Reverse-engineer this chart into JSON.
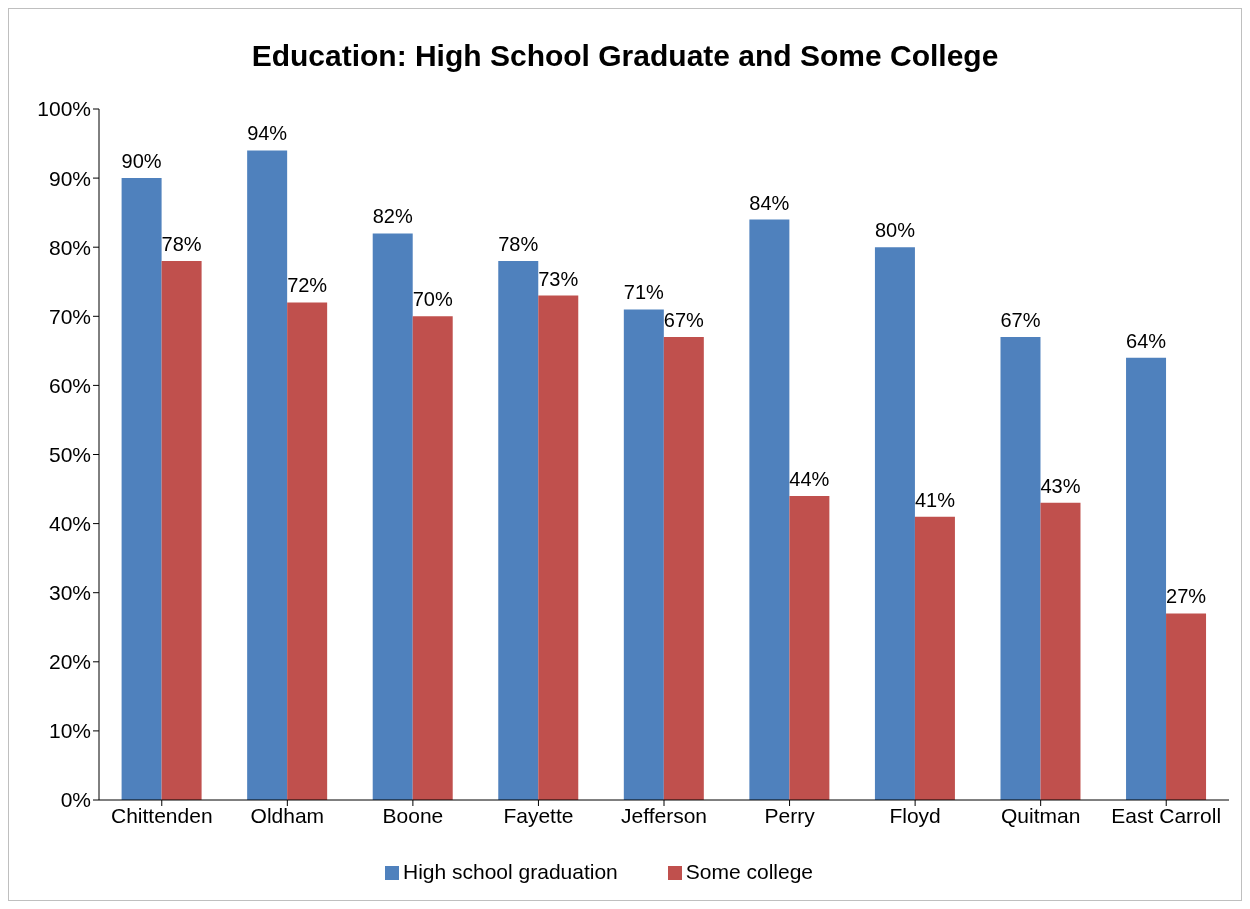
{
  "chart_data": {
    "type": "bar",
    "title": "Education: High School Graduate and Some College",
    "categories": [
      "Chittenden",
      "Oldham",
      "Boone",
      "Fayette",
      "Jefferson",
      "Perry",
      "Floyd",
      "Quitman",
      "East Carroll"
    ],
    "series": [
      {
        "name": "High school graduation",
        "color": "#4f81bd",
        "values": [
          90,
          94,
          82,
          78,
          71,
          84,
          80,
          67,
          64
        ],
        "value_labels": [
          "90%",
          "94%",
          "82%",
          "78%",
          "71%",
          "84%",
          "80%",
          "67%",
          "64%"
        ]
      },
      {
        "name": "Some college",
        "color": "#c0504d",
        "values": [
          78,
          72,
          70,
          73,
          67,
          44,
          41,
          43,
          27
        ],
        "value_labels": [
          "78%",
          "72%",
          "70%",
          "73%",
          "67%",
          "44%",
          "41%",
          "43%",
          "27%"
        ]
      }
    ],
    "ylim": [
      0,
      100
    ],
    "yticks": [
      {
        "value": 0,
        "label": "0%"
      },
      {
        "value": 10,
        "label": "10%"
      },
      {
        "value": 20,
        "label": "20%"
      },
      {
        "value": 30,
        "label": "30%"
      },
      {
        "value": 40,
        "label": "40%"
      },
      {
        "value": 50,
        "label": "50%"
      },
      {
        "value": 60,
        "label": "60%"
      },
      {
        "value": 70,
        "label": "70%"
      },
      {
        "value": 80,
        "label": "80%"
      },
      {
        "value": 90,
        "label": "90%"
      },
      {
        "value": 100,
        "label": "100%"
      }
    ],
    "grid": false,
    "legend": "bottom"
  }
}
